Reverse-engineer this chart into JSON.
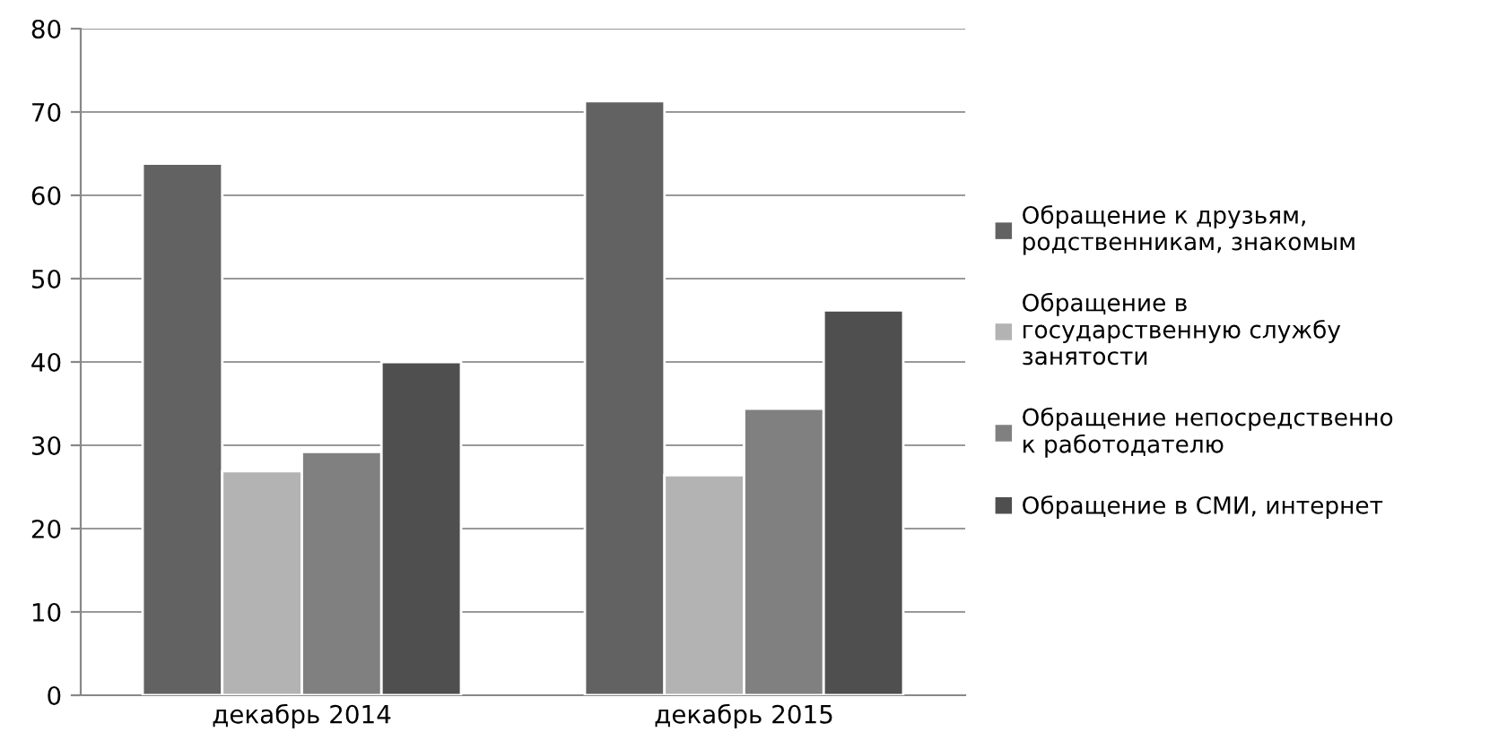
{
  "chart_data": {
    "type": "bar",
    "categories": [
      "декабрь 2014",
      "декабрь 2015"
    ],
    "series": [
      {
        "name": "Обращение к друзьям,\nродственникам, знакомым",
        "color": "#626262",
        "values": [
          63.8,
          71.3
        ]
      },
      {
        "name": "Обращение в\nгосударственную службу\nзанятости",
        "color": "#b3b3b3",
        "values": [
          26.9,
          26.4
        ]
      },
      {
        "name": "Обращение непосредственно\nк работодателю",
        "color": "#808080",
        "values": [
          29.2,
          34.4
        ]
      },
      {
        "name": "Обращение в СМИ, интернет",
        "color": "#4f4f4f",
        "values": [
          40.0,
          46.2
        ]
      }
    ],
    "ylim": [
      0,
      80
    ],
    "yticks": [
      0,
      10,
      20,
      30,
      40,
      50,
      60,
      70,
      80
    ],
    "grid": "y",
    "legend": "right"
  }
}
